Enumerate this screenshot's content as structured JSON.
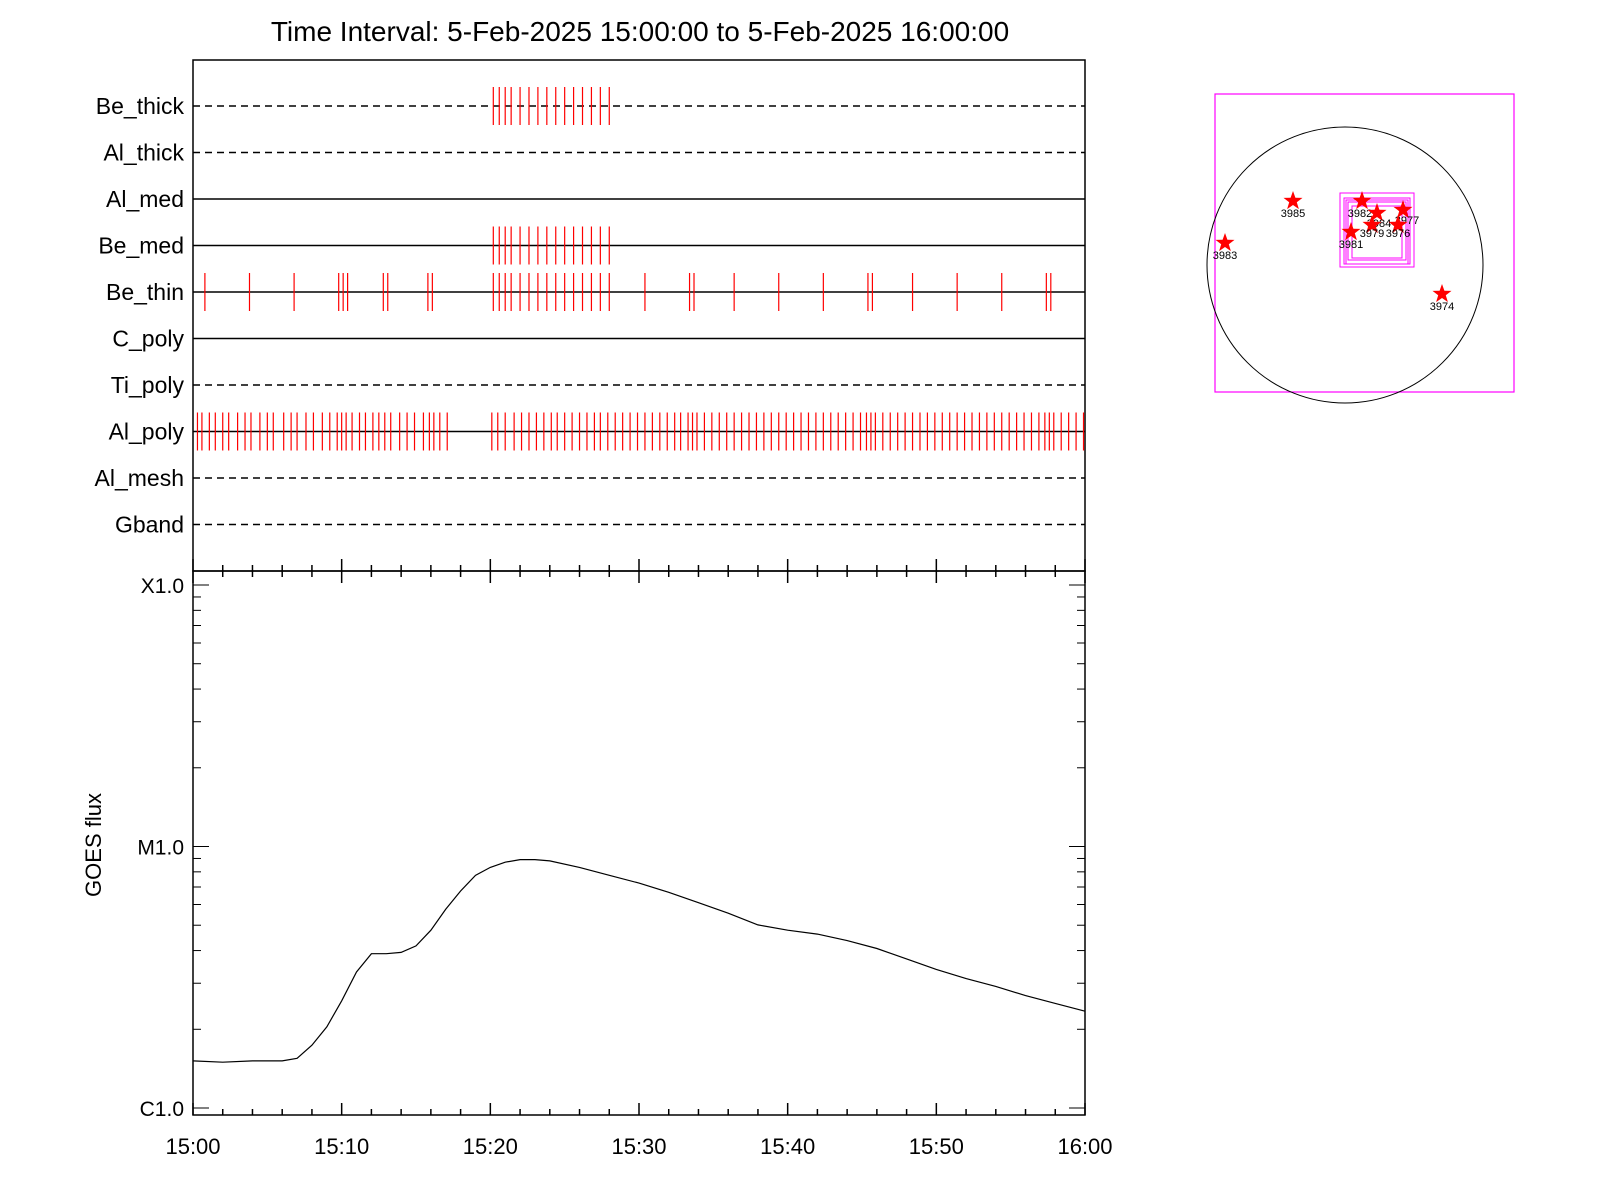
{
  "chart_data": [
    {
      "type": "line",
      "title": "Time Interval:  5-Feb-2025 15:00:00 to  5-Feb-2025 16:00:00",
      "xlabel": "",
      "ylabel": "GOES flux",
      "x_ticks": [
        "15:00",
        "15:10",
        "15:20",
        "15:30",
        "15:40",
        "15:50",
        "16:00"
      ],
      "x_range_minutes": [
        0,
        60
      ],
      "y_scale": "log",
      "y_ticks": [
        "C1.0",
        "M1.0",
        "X1.0"
      ],
      "y_tick_exponents": [
        -6,
        -5,
        -4
      ],
      "series": [
        {
          "x": [
            0,
            2,
            4,
            6,
            7,
            8,
            9,
            10,
            11,
            12,
            13,
            14,
            15,
            16,
            17,
            18,
            19,
            20,
            21,
            22,
            23,
            24,
            26,
            28,
            30,
            32,
            34,
            36,
            38,
            40,
            42,
            44,
            46,
            48,
            50,
            52,
            54,
            56,
            58,
            60
          ],
          "y_log10": [
            -5.82,
            -5.825,
            -5.82,
            -5.82,
            -5.81,
            -5.76,
            -5.69,
            -5.59,
            -5.48,
            -5.41,
            -5.41,
            -5.405,
            -5.38,
            -5.32,
            -5.24,
            -5.17,
            -5.11,
            -5.08,
            -5.06,
            -5.05,
            -5.05,
            -5.055,
            -5.08,
            -5.11,
            -5.14,
            -5.175,
            -5.215,
            -5.255,
            -5.3,
            -5.32,
            -5.335,
            -5.36,
            -5.39,
            -5.43,
            -5.47,
            -5.505,
            -5.535,
            -5.57,
            -5.6,
            -5.63
          ]
        }
      ]
    },
    {
      "type": "scatter",
      "title": "",
      "rows": [
        "Be_thick",
        "Al_thick",
        "Al_med",
        "Be_med",
        "Be_thin",
        "C_poly",
        "Ti_poly",
        "Al_poly",
        "Al_mesh",
        "Gband"
      ],
      "row_line_style": [
        "dashed",
        "dashed",
        "solid",
        "solid",
        "solid",
        "solid",
        "dashed",
        "solid",
        "dashed",
        "dashed"
      ],
      "observation_color": "#ff0000",
      "observations_minutes": {
        "Be_thick": [
          20.2,
          20.6,
          21.0,
          21.4,
          22.0,
          22.6,
          23.2,
          23.8,
          24.4,
          25.0,
          25.6,
          26.2,
          26.8,
          27.4,
          28.0
        ],
        "Al_thick": [],
        "Al_med": [],
        "Be_med": [
          20.2,
          20.6,
          21.0,
          21.4,
          22.0,
          22.6,
          23.2,
          23.8,
          24.4,
          25.0,
          25.6,
          26.2,
          26.8,
          27.4,
          28.0
        ],
        "Be_thin": [
          0.8,
          3.8,
          6.8,
          9.8,
          10.1,
          10.4,
          12.8,
          13.1,
          15.8,
          16.1,
          20.2,
          20.6,
          21.0,
          21.4,
          22.0,
          22.6,
          23.2,
          23.8,
          24.4,
          25.0,
          25.6,
          26.2,
          26.8,
          27.4,
          28.0,
          30.4,
          33.4,
          33.7,
          36.4,
          39.4,
          42.4,
          45.4,
          45.7,
          48.4,
          51.4,
          54.4,
          57.4,
          57.7
        ],
        "C_poly": [],
        "Ti_poly": [],
        "Al_poly": [
          0.3,
          0.6,
          1.1,
          1.5,
          2.0,
          2.4,
          3.0,
          3.5,
          3.9,
          4.5,
          5.0,
          5.4,
          6.1,
          6.6,
          7.0,
          7.6,
          8.1,
          8.7,
          9.2,
          9.7,
          10.0,
          10.3,
          10.7,
          11.2,
          11.6,
          12.1,
          12.5,
          12.9,
          13.3,
          13.9,
          14.4,
          14.9,
          15.5,
          15.9,
          16.2,
          16.6,
          17.1,
          20.1,
          20.5,
          21.0,
          21.6,
          22.1,
          22.6,
          23.1,
          23.6,
          24.1,
          24.5,
          25.0,
          25.5,
          26.0,
          26.5,
          27.0,
          27.4,
          27.9,
          28.4,
          28.9,
          29.4,
          29.9,
          30.4,
          30.9,
          31.4,
          31.9,
          32.4,
          32.8,
          33.3,
          33.6,
          33.9,
          34.4,
          34.9,
          35.4,
          35.9,
          36.4,
          36.9,
          37.4,
          37.9,
          38.4,
          38.9,
          39.4,
          39.9,
          40.4,
          40.9,
          41.4,
          41.9,
          42.4,
          42.9,
          43.4,
          43.9,
          44.4,
          44.9,
          45.3,
          45.6,
          45.9,
          46.4,
          46.9,
          47.4,
          47.9,
          48.4,
          48.9,
          49.4,
          49.9,
          50.4,
          50.9,
          51.4,
          51.9,
          52.4,
          52.9,
          53.4,
          53.9,
          54.4,
          54.9,
          55.4,
          55.9,
          56.4,
          56.9,
          57.3,
          57.6,
          57.9,
          58.4,
          58.9,
          59.4,
          59.9
        ]
      }
    },
    {
      "type": "scatter",
      "title": "",
      "description_markers": "active regions on solar disk",
      "disk_circle": true,
      "regions": [
        {
          "label": "3985",
          "marker": "star"
        },
        {
          "label": "3982",
          "marker": "star"
        },
        {
          "label": "3984",
          "marker": "star"
        },
        {
          "label": "3977",
          "marker": "star"
        },
        {
          "label": "3979",
          "marker": "star"
        },
        {
          "label": "3976",
          "marker": "star"
        },
        {
          "label": "3981",
          "marker": "star"
        },
        {
          "label": "3983",
          "marker": "star"
        },
        {
          "label": "3974",
          "marker": "star"
        }
      ],
      "marker_color": "#ff0000",
      "fov_box_color": "#ff00ff"
    }
  ]
}
